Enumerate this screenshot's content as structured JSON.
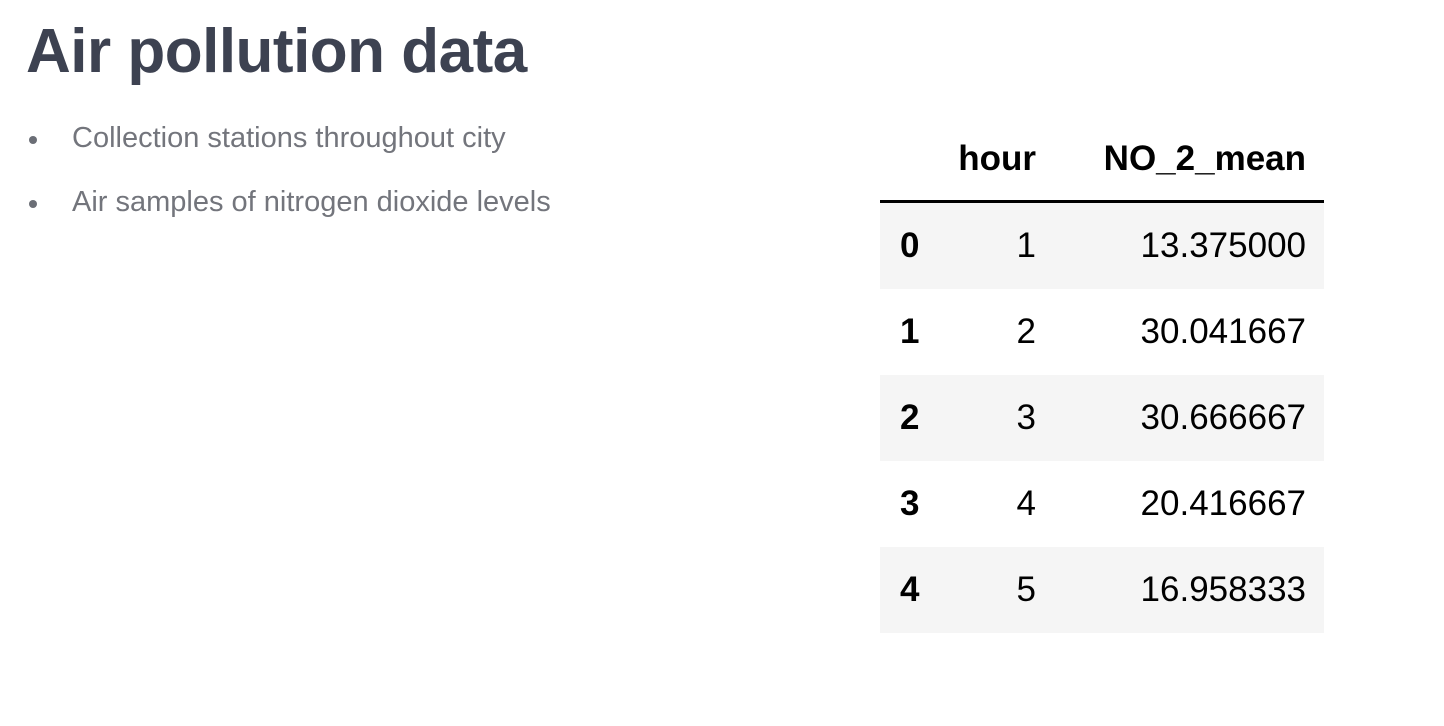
{
  "title": "Air pollution data",
  "bullets": [
    {
      "text": "Collection stations throughout city"
    },
    {
      "text": "Air samples of nitrogen dioxide levels"
    }
  ],
  "table": {
    "columns": [
      "",
      "hour",
      "NO_2_mean"
    ],
    "rows": [
      {
        "index": "0",
        "hour": "1",
        "no2_mean": "13.375000"
      },
      {
        "index": "1",
        "hour": "2",
        "no2_mean": "30.041667"
      },
      {
        "index": "2",
        "hour": "3",
        "no2_mean": "30.666667"
      },
      {
        "index": "3",
        "hour": "4",
        "no2_mean": "20.416667"
      },
      {
        "index": "4",
        "hour": "5",
        "no2_mean": "16.958333"
      }
    ]
  },
  "colors": {
    "title": "#3d4251",
    "bullet_text": "#73757c",
    "row_stripe": "#f5f5f5"
  }
}
